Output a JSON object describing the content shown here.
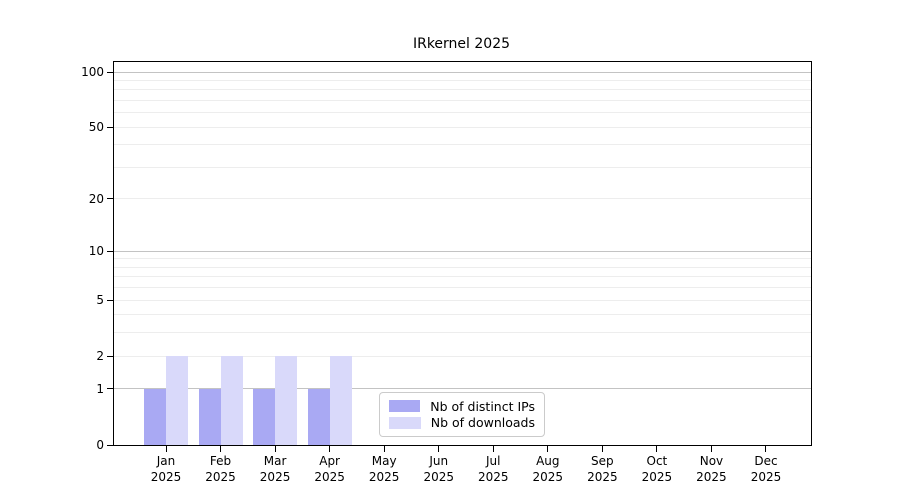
{
  "chart_data": {
    "type": "bar",
    "title": "IRkernel 2025",
    "categories": [
      "Jan 2025",
      "Feb 2025",
      "Mar 2025",
      "Apr 2025",
      "May 2025",
      "Jun 2025",
      "Jul 2025",
      "Aug 2025",
      "Sep 2025",
      "Oct 2025",
      "Nov 2025",
      "Dec 2025"
    ],
    "series": [
      {
        "name": "Nb of distinct IPs",
        "color": "#a9a9f3",
        "values": [
          1,
          1,
          1,
          1,
          0,
          0,
          0,
          0,
          0,
          0,
          0,
          0
        ]
      },
      {
        "name": "Nb of downloads",
        "color": "#d9d9fa",
        "values": [
          2,
          2,
          2,
          2,
          0,
          0,
          0,
          0,
          0,
          0,
          0,
          0
        ]
      }
    ],
    "yscale": "log1p",
    "ylim": [
      0,
      100
    ],
    "y_ticks": [
      0,
      1,
      2,
      5,
      10,
      20,
      50,
      100
    ],
    "y_major_gridlines": [
      1,
      10,
      100
    ],
    "y_minor_gridlines": [
      2,
      3,
      4,
      5,
      6,
      7,
      8,
      9,
      20,
      30,
      40,
      50,
      60,
      70,
      80,
      90
    ],
    "grid": "horizontal",
    "legend_position": "lower center",
    "colors": {
      "axis": "#000000",
      "major_grid": "#c3c3c3",
      "minor_grid": "#ededed",
      "background": "#ffffff"
    }
  }
}
